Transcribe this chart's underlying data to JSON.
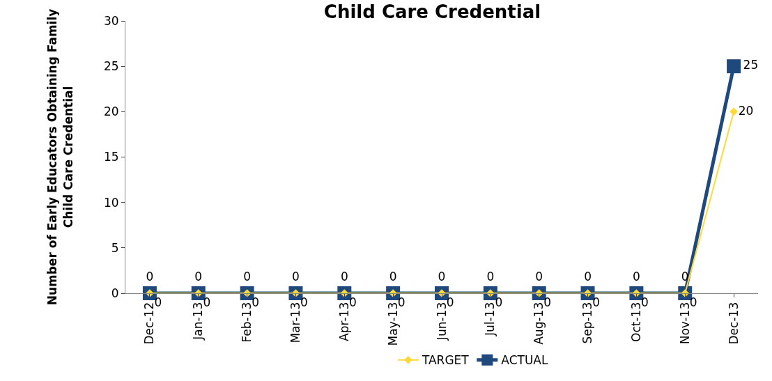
{
  "chart_data": {
    "type": "line",
    "title": "Child Care Credential",
    "ylabel": "Number of Early Educators Obtaining Family\nChild Care Credential",
    "categories": [
      "Dec-12",
      "Jan-13",
      "Feb-13",
      "Mar-13",
      "Apr-13",
      "May-13",
      "Jun-13",
      "Jul-13",
      "Aug-13",
      "Sep-13",
      "Oct-13",
      "Nov-13",
      "Dec-13"
    ],
    "series": [
      {
        "name": "TARGET",
        "color": "#ffd936",
        "marker": "diamond",
        "values": [
          0,
          0,
          0,
          0,
          0,
          0,
          0,
          0,
          0,
          0,
          0,
          0,
          20
        ]
      },
      {
        "name": "ACTUAL",
        "color": "#1f497d",
        "marker": "square",
        "values": [
          0,
          0,
          0,
          0,
          0,
          0,
          0,
          0,
          0,
          0,
          0,
          0,
          25
        ]
      }
    ],
    "ylim": [
      0,
      30
    ],
    "yticks": [
      0,
      5,
      10,
      15,
      20,
      25,
      30
    ],
    "legend": "bottom",
    "data_labels": true,
    "line_style": "solid"
  }
}
